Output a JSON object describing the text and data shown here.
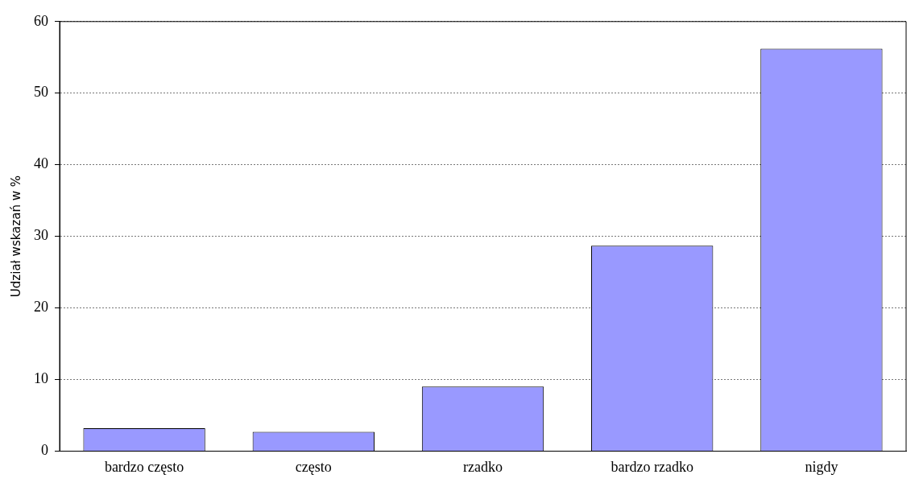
{
  "chart_data": {
    "type": "bar",
    "ylabel": "Udział wskazań w %",
    "categories": [
      "bardzo często",
      "często",
      "rzadko",
      "bardzo rzadko",
      "nigdy"
    ],
    "values": [
      3.2,
      2.7,
      9.0,
      28.7,
      56.2
    ],
    "color": "#9999ff",
    "ylim": [
      0,
      60
    ],
    "yticks": [
      0,
      10,
      20,
      30,
      40,
      50,
      60
    ],
    "grid": "y",
    "legend": false
  }
}
